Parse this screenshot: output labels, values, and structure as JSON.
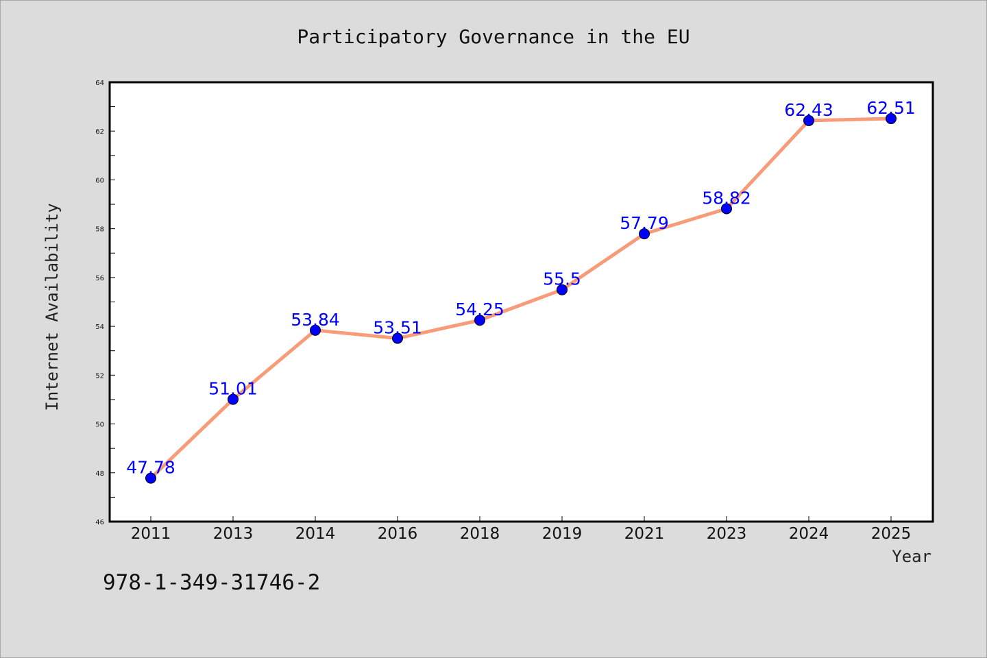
{
  "chart_data": {
    "type": "line",
    "title": "Participatory Governance in the EU",
    "xlabel": "Year",
    "ylabel": "Internet Availability",
    "categories": [
      "2011",
      "2013",
      "2014",
      "2016",
      "2018",
      "2019",
      "2021",
      "2023",
      "2024",
      "2025"
    ],
    "series": [
      {
        "values": [
          47.78,
          51.01,
          53.84,
          53.51,
          54.25,
          55.5,
          57.79,
          58.82,
          62.43,
          62.51
        ],
        "data_labels": [
          "47.78",
          "51.01",
          "53.84",
          "53.51",
          "54.25",
          "55.5",
          "57.79",
          "58.82",
          "62.43",
          "62.51"
        ],
        "line_color": "#f79b79",
        "marker_color": "#0000ff"
      }
    ],
    "ylim": [
      46,
      64
    ],
    "yticks": [
      "46",
      "48",
      "50",
      "52",
      "54",
      "56",
      "58",
      "60",
      "62",
      "64"
    ],
    "grid": false,
    "legend": "none"
  },
  "footer": {
    "isbn": "978-1-349-31746-2"
  },
  "colors": {
    "background": "#dcdcdc",
    "plot_background": "#ffffff"
  }
}
